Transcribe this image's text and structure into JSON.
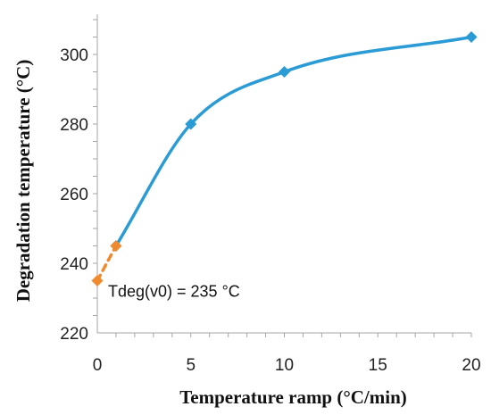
{
  "chart_data": {
    "type": "line",
    "title": "",
    "xlabel": "Temperature ramp (°C/min)",
    "ylabel": "Degradation temperature (°C)",
    "xlim": [
      0,
      20
    ],
    "ylim": [
      220,
      310
    ],
    "xticks": [
      0,
      5,
      10,
      15,
      20
    ],
    "yticks": [
      220,
      240,
      260,
      280,
      300
    ],
    "grid": false,
    "series": [
      {
        "x": [
          1,
          5,
          10,
          20
        ],
        "y": [
          245,
          280,
          295,
          305
        ],
        "color": "#2b9bd6",
        "marker": "diamond",
        "line_style": "solid",
        "smooth": true
      },
      {
        "x": [
          0,
          1
        ],
        "y": [
          235,
          245
        ],
        "color": "#f08a2e",
        "marker": "diamond",
        "line_style": "dashed"
      }
    ],
    "annotations": [
      {
        "text": "Tdeg(v0) = 235 °C",
        "x": 0,
        "y": 235
      }
    ]
  }
}
